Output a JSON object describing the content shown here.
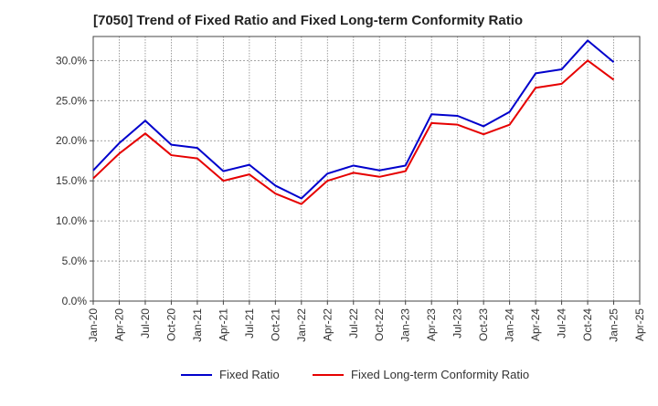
{
  "chart_data": {
    "type": "line",
    "title": "[7050]  Trend of Fixed Ratio and Fixed Long-term Conformity Ratio",
    "xlabel": "",
    "ylabel": "",
    "x": [
      "Jan-20",
      "Apr-20",
      "Jul-20",
      "Oct-20",
      "Jan-21",
      "Apr-21",
      "Jul-21",
      "Oct-21",
      "Jan-22",
      "Apr-22",
      "Jul-22",
      "Oct-22",
      "Jan-23",
      "Apr-23",
      "Jul-23",
      "Oct-23",
      "Jan-24",
      "Apr-24",
      "Jul-24",
      "Oct-24",
      "Jan-25"
    ],
    "x_ticks": [
      "Jan-20",
      "Apr-20",
      "Jul-20",
      "Oct-20",
      "Jan-21",
      "Apr-21",
      "Jul-21",
      "Oct-21",
      "Jan-22",
      "Apr-22",
      "Jul-22",
      "Oct-22",
      "Jan-23",
      "Apr-23",
      "Jul-23",
      "Oct-23",
      "Jan-24",
      "Apr-24",
      "Jul-24",
      "Oct-24",
      "Jan-25",
      "Apr-25"
    ],
    "y_ticks": [
      "0.0%",
      "5.0%",
      "10.0%",
      "15.0%",
      "20.0%",
      "25.0%",
      "30.0%"
    ],
    "ylim": [
      0,
      33
    ],
    "grid": true,
    "legend_position": "bottom",
    "series": [
      {
        "name": "Fixed Ratio",
        "color": "#0000cc",
        "values": [
          16.3,
          19.7,
          22.5,
          19.5,
          19.1,
          16.2,
          17.0,
          14.4,
          12.8,
          15.9,
          16.9,
          16.3,
          16.9,
          23.3,
          23.1,
          21.8,
          23.6,
          28.4,
          28.9,
          32.5,
          29.8
        ]
      },
      {
        "name": "Fixed Long-term Conformity Ratio",
        "color": "#e60000",
        "values": [
          15.3,
          18.4,
          20.9,
          18.2,
          17.8,
          15.0,
          15.8,
          13.4,
          12.1,
          15.0,
          16.0,
          15.5,
          16.2,
          22.2,
          22.0,
          20.8,
          22.0,
          26.6,
          27.1,
          30.0,
          27.6
        ]
      }
    ]
  }
}
